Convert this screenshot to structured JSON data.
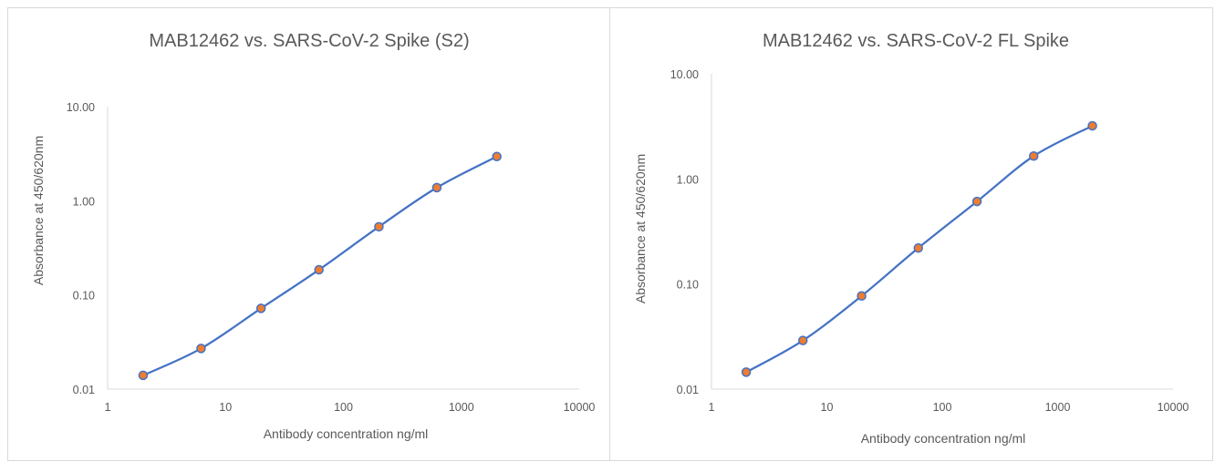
{
  "chart_data": [
    {
      "type": "scatter",
      "title": "MAB12462 vs. SARS-CoV-2 Spike (S2)",
      "xlabel": "Antibody concentration ng/ml",
      "ylabel": "Absorbance at 450/620nm",
      "xscale": "log",
      "yscale": "log",
      "xlim": [
        1,
        10000
      ],
      "ylim": [
        0.01,
        10
      ],
      "xticks": [
        "1",
        "10",
        "100",
        "1000",
        "10000"
      ],
      "yticks": [
        "0.01",
        "0.10",
        "1.00",
        "10.00"
      ],
      "grid": false,
      "legend": "none",
      "line_color": "#4472c4",
      "marker_color": "#ed7d31",
      "x": [
        2,
        6.2,
        20,
        62,
        200,
        620,
        2000
      ],
      "y": [
        0.014,
        0.027,
        0.072,
        0.185,
        0.53,
        1.38,
        2.95
      ]
    },
    {
      "type": "scatter",
      "title": "MAB12462 vs. SARS-CoV-2 FL Spike",
      "xlabel": "Antibody concentration ng/ml",
      "ylabel": "Absorbance at 450/620nm",
      "xscale": "log",
      "yscale": "log",
      "xlim": [
        1,
        10000
      ],
      "ylim": [
        0.01,
        10
      ],
      "xticks": [
        "1",
        "10",
        "100",
        "1000",
        "10000"
      ],
      "yticks": [
        "0.01",
        "0.10",
        "1.00",
        "10.00"
      ],
      "grid": false,
      "legend": "none",
      "line_color": "#4472c4",
      "marker_color": "#ed7d31",
      "x": [
        2,
        6.2,
        20,
        62,
        200,
        620,
        2000
      ],
      "y": [
        0.0145,
        0.029,
        0.077,
        0.22,
        0.61,
        1.65,
        3.2
      ]
    }
  ]
}
